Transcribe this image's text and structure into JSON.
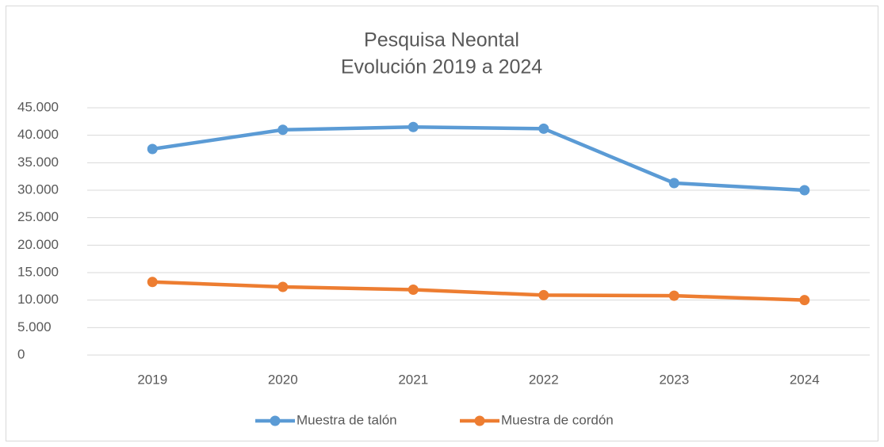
{
  "chart_data": {
    "type": "line",
    "title": "Pesquisa Neontal",
    "subtitle": "Evolución 2019 a 2024",
    "categories": [
      "2019",
      "2020",
      "2021",
      "2022",
      "2023",
      "2024"
    ],
    "series": [
      {
        "name": "Muestra de talón",
        "color": "#5b9bd5",
        "values": [
          37500,
          41000,
          41500,
          41200,
          31300,
          30000
        ]
      },
      {
        "name": "Muestra de cordón",
        "color": "#ed7d31",
        "values": [
          13300,
          12400,
          11900,
          10900,
          10800,
          10000
        ]
      }
    ],
    "ylim": [
      0,
      45000
    ],
    "yticks": [
      0,
      {
        "value": 5000,
        "label": "5.000"
      },
      {
        "value": 10000,
        "label": "10.000"
      },
      {
        "value": 15000,
        "label": "15.000"
      },
      {
        "value": 20000,
        "label": "20.000"
      },
      {
        "value": 25000,
        "label": "25.000"
      },
      {
        "value": 30000,
        "label": "30.000"
      },
      {
        "value": 35000,
        "label": "35.000"
      },
      {
        "value": 40000,
        "label": "40.000"
      },
      {
        "value": 45000,
        "label": "45.000"
      }
    ],
    "grid": true,
    "legend": "bottom"
  }
}
